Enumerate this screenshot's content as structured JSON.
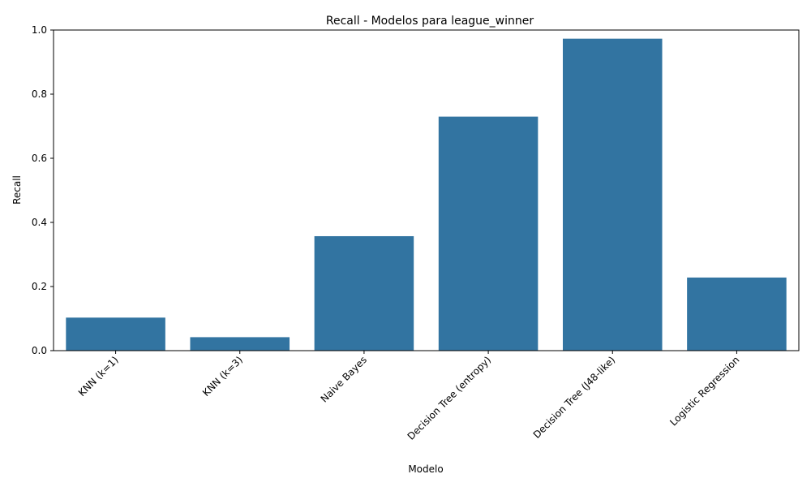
{
  "chart_data": {
    "type": "bar",
    "title": "Recall - Modelos para league_winner",
    "xlabel": "Modelo",
    "ylabel": "Recall",
    "categories": [
      "KNN (k=1)",
      "KNN (k=3)",
      "Naive Bayes",
      "Decision Tree (entropy)",
      "Decision Tree (J48-like)",
      "Logistic Regression"
    ],
    "values": [
      0.103,
      0.042,
      0.357,
      0.73,
      0.973,
      0.228
    ],
    "ylim": [
      0,
      1.0
    ],
    "yticks": [
      "0.0",
      "0.2",
      "0.4",
      "0.6",
      "0.8",
      "1.0"
    ],
    "grid": false,
    "bar_color": "#3274a1",
    "x_tick_rotation_deg": 45
  }
}
